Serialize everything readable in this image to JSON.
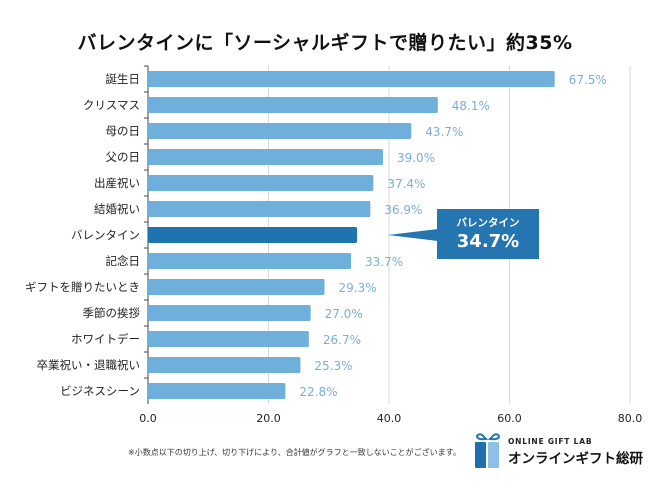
{
  "chart_data": {
    "type": "bar",
    "orientation": "horizontal",
    "title": "バレンタインに「ソーシャルギフトで贈りたい」約35%",
    "xlabel": "",
    "ylabel": "",
    "xlim": [
      0,
      80
    ],
    "x_ticks": [
      "0.0",
      "20.0",
      "40.0",
      "60.0",
      "80.0"
    ],
    "x_tick_values": [
      0,
      20,
      40,
      60,
      80
    ],
    "grid": true,
    "categories": [
      "誕生日",
      "クリスマス",
      "母の日",
      "父の日",
      "出産祝い",
      "結婚祝い",
      "バレンタイン",
      "記念日",
      "ギフトを贈りたいとき",
      "季節の挨拶",
      "ホワイトデー",
      "卒業祝い・退職祝い",
      "ビジネスシーン"
    ],
    "values": [
      67.5,
      48.1,
      43.7,
      39.0,
      37.4,
      36.9,
      34.7,
      33.7,
      29.3,
      27.0,
      26.7,
      25.3,
      22.8
    ],
    "value_labels": [
      "67.5%",
      "48.1%",
      "43.7%",
      "39.0%",
      "37.4%",
      "36.9%",
      "",
      "33.7%",
      "29.3%",
      "27.0%",
      "26.7%",
      "25.3%",
      "22.8%"
    ],
    "highlight_index": 6,
    "annotation": {
      "category": "バレンタイン",
      "value_label": "34.7%"
    },
    "colors": {
      "bar": "#6fafdc",
      "highlight": "#1f74b0",
      "value_label": "#7aaedb",
      "grid": "#d9d9d9",
      "callout": "#2475b0"
    }
  },
  "callout": {
    "name": "バレンタイン",
    "value": "34.7%"
  },
  "footnote": "※小数点以下の切り上げ、切り下げにより、合計値がグラフと一致しないことがございます。",
  "logo": {
    "en": "ONLINE GIFT LAB",
    "jp": "オンラインギフト総研",
    "icon": "gift-box-icon"
  }
}
